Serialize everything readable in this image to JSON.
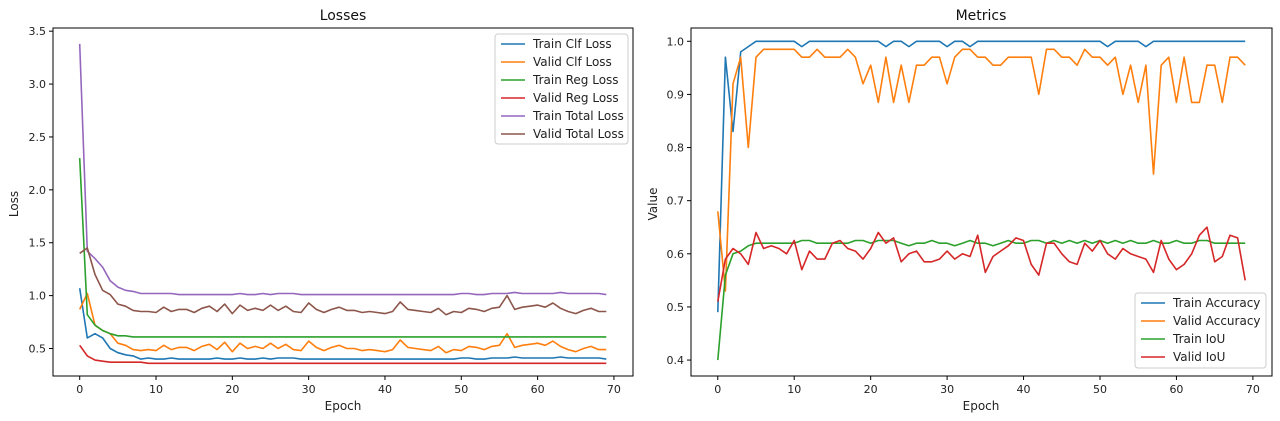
{
  "chart_data": [
    {
      "type": "line",
      "title": "Losses",
      "xlabel": "Epoch",
      "ylabel": "Loss",
      "xlim": [
        -3.5,
        72.5
      ],
      "ylim": [
        0.24,
        3.53
      ],
      "xticks": [
        0,
        10,
        20,
        30,
        40,
        50,
        60,
        70
      ],
      "yticks": [
        0.5,
        1.0,
        1.5,
        2.0,
        2.5,
        3.0,
        3.5
      ],
      "ytick_labels": [
        "0.5",
        "1.0",
        "1.5",
        "2.0",
        "2.5",
        "3.0",
        "3.5"
      ],
      "grid": false,
      "legend": "top-right",
      "x": [
        0,
        1,
        2,
        3,
        4,
        5,
        6,
        7,
        8,
        9,
        10,
        11,
        12,
        13,
        14,
        15,
        16,
        17,
        18,
        19,
        20,
        21,
        22,
        23,
        24,
        25,
        26,
        27,
        28,
        29,
        30,
        31,
        32,
        33,
        34,
        35,
        36,
        37,
        38,
        39,
        40,
        41,
        42,
        43,
        44,
        45,
        46,
        47,
        48,
        49,
        50,
        51,
        52,
        53,
        54,
        55,
        56,
        57,
        58,
        59,
        60,
        61,
        62,
        63,
        64,
        65,
        66,
        67,
        68,
        69
      ],
      "series": [
        {
          "name": "Train Clf Loss",
          "color": "#1f77b4",
          "values": [
            1.07,
            0.6,
            0.64,
            0.6,
            0.5,
            0.46,
            0.44,
            0.43,
            0.4,
            0.41,
            0.4,
            0.4,
            0.41,
            0.4,
            0.4,
            0.4,
            0.4,
            0.4,
            0.41,
            0.4,
            0.4,
            0.41,
            0.4,
            0.4,
            0.41,
            0.4,
            0.41,
            0.41,
            0.41,
            0.4,
            0.4,
            0.4,
            0.4,
            0.4,
            0.4,
            0.4,
            0.4,
            0.4,
            0.4,
            0.4,
            0.4,
            0.4,
            0.4,
            0.4,
            0.4,
            0.4,
            0.4,
            0.4,
            0.4,
            0.4,
            0.41,
            0.41,
            0.4,
            0.4,
            0.41,
            0.41,
            0.41,
            0.42,
            0.41,
            0.41,
            0.41,
            0.41,
            0.41,
            0.42,
            0.41,
            0.41,
            0.41,
            0.41,
            0.41,
            0.4
          ]
        },
        {
          "name": "Valid Clf Loss",
          "color": "#ff7f0e",
          "values": [
            0.87,
            1.02,
            0.72,
            0.67,
            0.64,
            0.55,
            0.53,
            0.49,
            0.48,
            0.49,
            0.48,
            0.53,
            0.49,
            0.51,
            0.51,
            0.48,
            0.52,
            0.54,
            0.49,
            0.56,
            0.47,
            0.55,
            0.5,
            0.52,
            0.5,
            0.55,
            0.5,
            0.54,
            0.49,
            0.48,
            0.57,
            0.51,
            0.48,
            0.51,
            0.53,
            0.5,
            0.5,
            0.48,
            0.49,
            0.48,
            0.47,
            0.49,
            0.58,
            0.51,
            0.5,
            0.49,
            0.48,
            0.52,
            0.46,
            0.49,
            0.48,
            0.52,
            0.51,
            0.49,
            0.52,
            0.53,
            0.64,
            0.51,
            0.53,
            0.54,
            0.55,
            0.53,
            0.57,
            0.52,
            0.49,
            0.47,
            0.5,
            0.52,
            0.49,
            0.49
          ]
        },
        {
          "name": "Train Reg Loss",
          "color": "#2ca02c",
          "values": [
            2.3,
            0.82,
            0.72,
            0.67,
            0.64,
            0.62,
            0.62,
            0.61,
            0.61,
            0.61,
            0.61,
            0.61,
            0.61,
            0.61,
            0.61,
            0.61,
            0.61,
            0.61,
            0.61,
            0.61,
            0.61,
            0.61,
            0.61,
            0.61,
            0.61,
            0.61,
            0.61,
            0.61,
            0.61,
            0.61,
            0.61,
            0.61,
            0.61,
            0.61,
            0.61,
            0.61,
            0.61,
            0.61,
            0.61,
            0.61,
            0.61,
            0.61,
            0.61,
            0.61,
            0.61,
            0.61,
            0.61,
            0.61,
            0.61,
            0.61,
            0.61,
            0.61,
            0.61,
            0.61,
            0.61,
            0.61,
            0.61,
            0.61,
            0.61,
            0.61,
            0.61,
            0.61,
            0.61,
            0.61,
            0.61,
            0.61,
            0.61,
            0.61,
            0.61,
            0.61
          ]
        },
        {
          "name": "Valid Reg Loss",
          "color": "#d62728",
          "values": [
            0.53,
            0.43,
            0.39,
            0.38,
            0.37,
            0.37,
            0.37,
            0.37,
            0.37,
            0.36,
            0.36,
            0.36,
            0.36,
            0.36,
            0.36,
            0.36,
            0.36,
            0.36,
            0.36,
            0.36,
            0.36,
            0.36,
            0.36,
            0.36,
            0.36,
            0.36,
            0.36,
            0.36,
            0.36,
            0.36,
            0.36,
            0.36,
            0.36,
            0.36,
            0.36,
            0.36,
            0.36,
            0.36,
            0.36,
            0.36,
            0.36,
            0.36,
            0.36,
            0.36,
            0.36,
            0.36,
            0.36,
            0.36,
            0.36,
            0.36,
            0.36,
            0.36,
            0.36,
            0.36,
            0.36,
            0.36,
            0.36,
            0.36,
            0.36,
            0.36,
            0.36,
            0.36,
            0.36,
            0.36,
            0.36,
            0.36,
            0.36,
            0.36,
            0.36,
            0.36
          ]
        },
        {
          "name": "Train Total Loss",
          "color": "#9467bd",
          "values": [
            3.38,
            1.42,
            1.35,
            1.27,
            1.14,
            1.08,
            1.05,
            1.04,
            1.02,
            1.02,
            1.02,
            1.02,
            1.02,
            1.01,
            1.01,
            1.01,
            1.01,
            1.01,
            1.01,
            1.01,
            1.01,
            1.02,
            1.01,
            1.01,
            1.02,
            1.01,
            1.02,
            1.02,
            1.02,
            1.01,
            1.01,
            1.01,
            1.01,
            1.01,
            1.01,
            1.01,
            1.01,
            1.01,
            1.01,
            1.01,
            1.01,
            1.01,
            1.01,
            1.01,
            1.01,
            1.01,
            1.01,
            1.01,
            1.01,
            1.01,
            1.02,
            1.02,
            1.01,
            1.01,
            1.02,
            1.02,
            1.02,
            1.03,
            1.02,
            1.02,
            1.02,
            1.02,
            1.02,
            1.03,
            1.02,
            1.02,
            1.02,
            1.02,
            1.02,
            1.01
          ]
        },
        {
          "name": "Valid Total Loss",
          "color": "#8c564b",
          "values": [
            1.4,
            1.45,
            1.2,
            1.05,
            1.01,
            0.92,
            0.9,
            0.86,
            0.85,
            0.85,
            0.84,
            0.89,
            0.85,
            0.87,
            0.87,
            0.84,
            0.88,
            0.9,
            0.85,
            0.92,
            0.83,
            0.91,
            0.86,
            0.88,
            0.86,
            0.91,
            0.86,
            0.9,
            0.85,
            0.84,
            0.93,
            0.87,
            0.84,
            0.87,
            0.89,
            0.86,
            0.86,
            0.84,
            0.85,
            0.84,
            0.83,
            0.85,
            0.94,
            0.87,
            0.86,
            0.85,
            0.84,
            0.88,
            0.82,
            0.85,
            0.84,
            0.88,
            0.87,
            0.85,
            0.88,
            0.89,
            1.0,
            0.87,
            0.89,
            0.9,
            0.91,
            0.89,
            0.93,
            0.88,
            0.85,
            0.83,
            0.86,
            0.88,
            0.85,
            0.85
          ]
        }
      ]
    },
    {
      "type": "line",
      "title": "Metrics",
      "xlabel": "Epoch",
      "ylabel": "Value",
      "xlim": [
        -3.5,
        72.5
      ],
      "ylim": [
        0.37,
        1.025
      ],
      "xticks": [
        0,
        10,
        20,
        30,
        40,
        50,
        60,
        70
      ],
      "yticks": [
        0.4,
        0.5,
        0.6,
        0.7,
        0.8,
        0.9,
        1.0
      ],
      "ytick_labels": [
        "0.4",
        "0.5",
        "0.6",
        "0.7",
        "0.8",
        "0.9",
        "1.0"
      ],
      "grid": false,
      "legend": "bottom-right",
      "x": [
        0,
        1,
        2,
        3,
        4,
        5,
        6,
        7,
        8,
        9,
        10,
        11,
        12,
        13,
        14,
        15,
        16,
        17,
        18,
        19,
        20,
        21,
        22,
        23,
        24,
        25,
        26,
        27,
        28,
        29,
        30,
        31,
        32,
        33,
        34,
        35,
        36,
        37,
        38,
        39,
        40,
        41,
        42,
        43,
        44,
        45,
        46,
        47,
        48,
        49,
        50,
        51,
        52,
        53,
        54,
        55,
        56,
        57,
        58,
        59,
        60,
        61,
        62,
        63,
        64,
        65,
        66,
        67,
        68,
        69
      ],
      "series": [
        {
          "name": "Train Accuracy",
          "color": "#1f77b4",
          "values": [
            0.49,
            0.97,
            0.83,
            0.98,
            0.99,
            1.0,
            1.0,
            1.0,
            1.0,
            1.0,
            1.0,
            0.99,
            1.0,
            1.0,
            1.0,
            1.0,
            1.0,
            1.0,
            1.0,
            1.0,
            1.0,
            1.0,
            0.99,
            1.0,
            1.0,
            0.99,
            1.0,
            1.0,
            1.0,
            1.0,
            0.99,
            1.0,
            1.0,
            0.99,
            1.0,
            1.0,
            1.0,
            1.0,
            1.0,
            1.0,
            1.0,
            1.0,
            1.0,
            1.0,
            1.0,
            1.0,
            1.0,
            1.0,
            1.0,
            1.0,
            1.0,
            0.99,
            1.0,
            1.0,
            1.0,
            1.0,
            0.99,
            1.0,
            1.0,
            1.0,
            1.0,
            1.0,
            1.0,
            1.0,
            1.0,
            1.0,
            1.0,
            1.0,
            1.0,
            1.0
          ]
        },
        {
          "name": "Valid Accuracy",
          "color": "#ff7f0e",
          "values": [
            0.68,
            0.53,
            0.92,
            0.97,
            0.8,
            0.97,
            0.985,
            0.985,
            0.985,
            0.985,
            0.985,
            0.97,
            0.97,
            0.985,
            0.97,
            0.97,
            0.97,
            0.985,
            0.97,
            0.92,
            0.955,
            0.885,
            0.97,
            0.885,
            0.955,
            0.885,
            0.955,
            0.955,
            0.97,
            0.97,
            0.92,
            0.97,
            0.985,
            0.985,
            0.97,
            0.97,
            0.955,
            0.955,
            0.97,
            0.97,
            0.97,
            0.97,
            0.9,
            0.985,
            0.985,
            0.97,
            0.97,
            0.955,
            0.985,
            0.97,
            0.97,
            0.955,
            0.97,
            0.9,
            0.955,
            0.885,
            0.955,
            0.75,
            0.955,
            0.97,
            0.885,
            0.97,
            0.885,
            0.885,
            0.955,
            0.955,
            0.885,
            0.97,
            0.97,
            0.955
          ]
        },
        {
          "name": "Train IoU",
          "color": "#2ca02c",
          "values": [
            0.4,
            0.56,
            0.6,
            0.605,
            0.615,
            0.62,
            0.62,
            0.62,
            0.62,
            0.62,
            0.62,
            0.625,
            0.625,
            0.62,
            0.62,
            0.62,
            0.62,
            0.62,
            0.625,
            0.625,
            0.62,
            0.625,
            0.625,
            0.625,
            0.62,
            0.615,
            0.62,
            0.62,
            0.625,
            0.62,
            0.62,
            0.615,
            0.62,
            0.625,
            0.62,
            0.62,
            0.615,
            0.62,
            0.625,
            0.62,
            0.62,
            0.625,
            0.625,
            0.62,
            0.625,
            0.62,
            0.625,
            0.62,
            0.625,
            0.62,
            0.625,
            0.62,
            0.625,
            0.62,
            0.625,
            0.62,
            0.62,
            0.625,
            0.62,
            0.62,
            0.625,
            0.62,
            0.62,
            0.625,
            0.625,
            0.62,
            0.62,
            0.62,
            0.62,
            0.62
          ]
        },
        {
          "name": "Valid IoU",
          "color": "#d62728",
          "values": [
            0.51,
            0.59,
            0.61,
            0.6,
            0.58,
            0.64,
            0.61,
            0.615,
            0.61,
            0.6,
            0.625,
            0.57,
            0.605,
            0.59,
            0.59,
            0.62,
            0.625,
            0.61,
            0.605,
            0.59,
            0.61,
            0.64,
            0.62,
            0.63,
            0.585,
            0.6,
            0.605,
            0.585,
            0.585,
            0.59,
            0.605,
            0.59,
            0.6,
            0.595,
            0.635,
            0.565,
            0.595,
            0.605,
            0.615,
            0.63,
            0.625,
            0.58,
            0.56,
            0.62,
            0.62,
            0.6,
            0.585,
            0.58,
            0.62,
            0.605,
            0.625,
            0.6,
            0.59,
            0.61,
            0.6,
            0.595,
            0.59,
            0.565,
            0.625,
            0.59,
            0.57,
            0.58,
            0.6,
            0.635,
            0.65,
            0.585,
            0.595,
            0.635,
            0.63,
            0.55
          ]
        }
      ]
    }
  ]
}
